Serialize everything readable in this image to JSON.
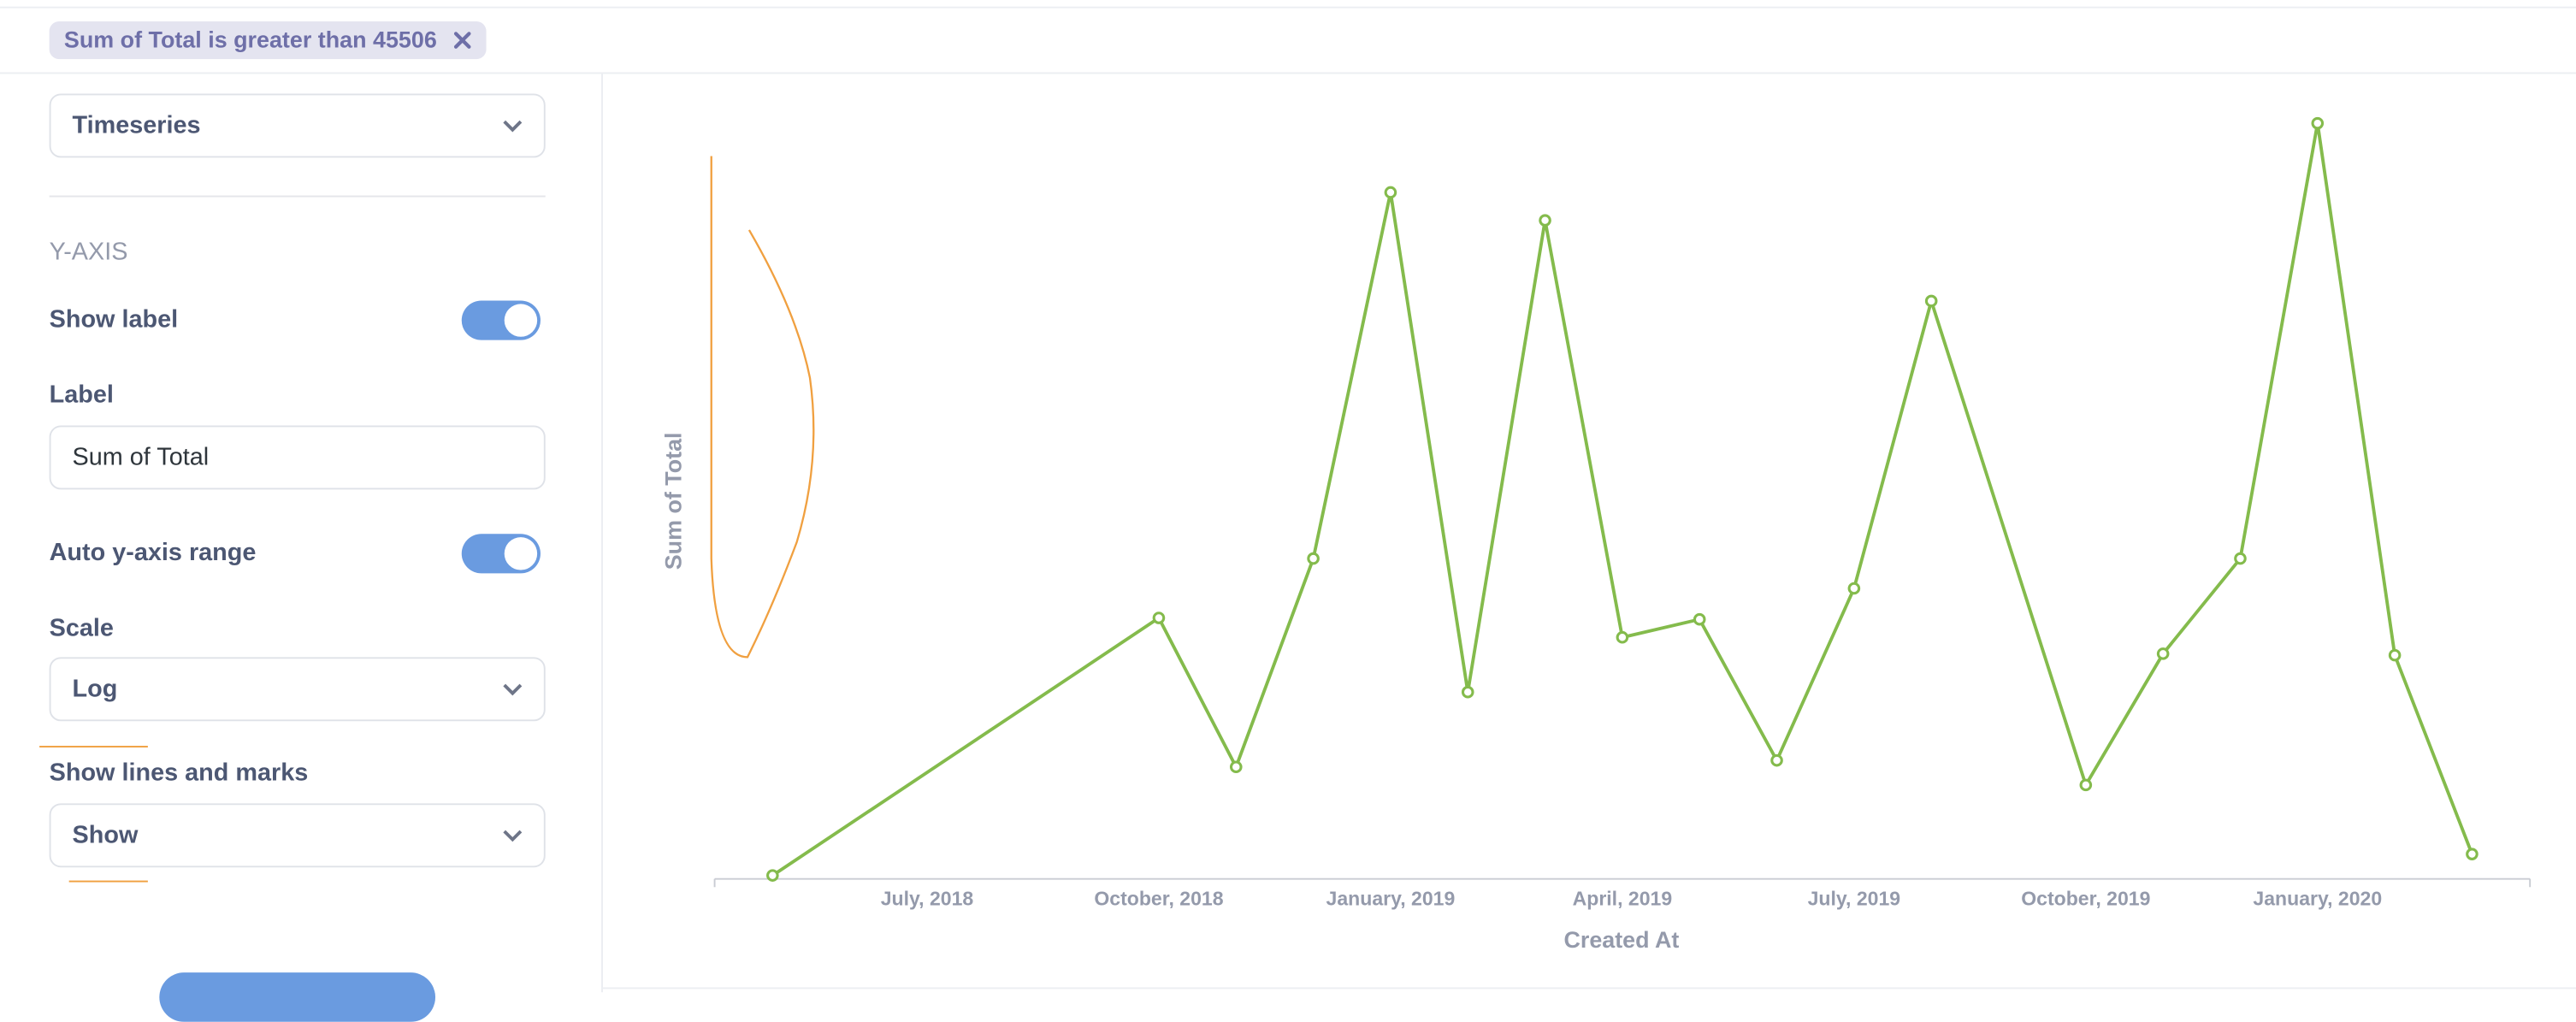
{
  "filter": {
    "label": "Sum of Total is greater than 45506"
  },
  "sidebar": {
    "display_select": "Timeseries",
    "section_title": "Y-AXIS",
    "show_label": {
      "label": "Show label",
      "on": true
    },
    "label_field": {
      "label": "Label",
      "value": "Sum of Total"
    },
    "auto_range": {
      "label": "Auto y-axis range",
      "on": true
    },
    "scale": {
      "label": "Scale",
      "value": "Log"
    },
    "lines_marks": {
      "label": "Show lines and marks",
      "value": "Show"
    }
  },
  "chart_data": {
    "type": "line",
    "x_label": "Created At",
    "y_label": "Sum of Total",
    "color": "#84bb4c",
    "log_scale": true,
    "grid": false,
    "x": [
      "2018-05",
      "2018-10",
      "2018-11",
      "2018-12",
      "2019-01",
      "2019-02",
      "2019-03",
      "2019-04",
      "2019-05",
      "2019-06",
      "2019-07",
      "2019-08",
      "2019-10",
      "2019-11",
      "2019-12",
      "2020-01",
      "2020-02",
      "2020-03"
    ],
    "values": [
      46300,
      75200,
      56800,
      84100,
      167600,
      65400,
      159000,
      72500,
      75000,
      57500,
      79500,
      136600,
      54900,
      70300,
      84100,
      190900,
      70100,
      48200
    ],
    "ylim": [
      46000,
      200000
    ],
    "xticks": [
      {
        "value": "2018-07",
        "label": "July, 2018"
      },
      {
        "value": "2018-10",
        "label": "October, 2018"
      },
      {
        "value": "2019-01",
        "label": "January, 2019"
      },
      {
        "value": "2019-04",
        "label": "April, 2019"
      },
      {
        "value": "2019-07",
        "label": "July, 2019"
      },
      {
        "value": "2019-10",
        "label": "October, 2019"
      },
      {
        "value": "2020-01",
        "label": "January, 2020"
      }
    ]
  }
}
